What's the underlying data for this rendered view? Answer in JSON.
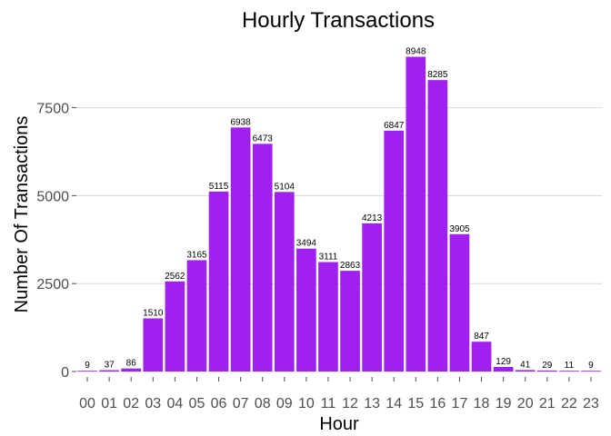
{
  "chart_data": {
    "type": "bar",
    "title": "Hourly Transactions",
    "xlabel": "Hour",
    "ylabel": "Number Of Transactions",
    "categories": [
      "00",
      "01",
      "02",
      "03",
      "04",
      "05",
      "06",
      "07",
      "08",
      "09",
      "10",
      "11",
      "12",
      "13",
      "14",
      "15",
      "16",
      "17",
      "18",
      "19",
      "20",
      "21",
      "22",
      "23"
    ],
    "values": [
      9,
      37,
      86,
      1510,
      2562,
      3165,
      5115,
      6938,
      6473,
      5104,
      3494,
      3111,
      2863,
      4213,
      6847,
      8948,
      8285,
      3905,
      847,
      129,
      41,
      29,
      11,
      9
    ],
    "ylim": [
      0,
      9400
    ],
    "yticks": [
      0,
      2500,
      5000,
      7500
    ],
    "ytick_labels": [
      "0",
      "2500",
      "5000",
      "7500"
    ],
    "grid": "horizontal",
    "bar_color": "#A020F0",
    "show_data_labels": true
  }
}
